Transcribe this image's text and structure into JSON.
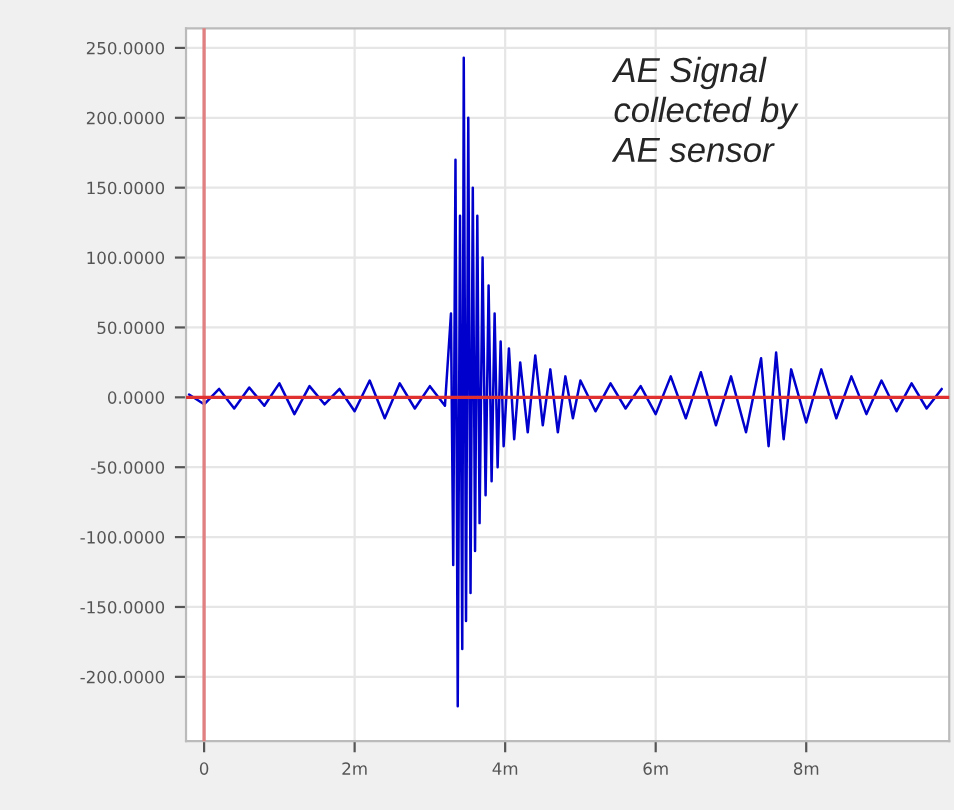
{
  "chart_data": {
    "type": "line",
    "x": [
      -0.2,
      0.0,
      0.2,
      0.4,
      0.6,
      0.8,
      1.0,
      1.2,
      1.4,
      1.6,
      1.8,
      2.0,
      2.2,
      2.4,
      2.6,
      2.8,
      3.0,
      3.2,
      3.28,
      3.31,
      3.34,
      3.37,
      3.4,
      3.43,
      3.45,
      3.48,
      3.51,
      3.54,
      3.57,
      3.6,
      3.63,
      3.66,
      3.7,
      3.74,
      3.78,
      3.82,
      3.86,
      3.9,
      3.94,
      3.98,
      4.05,
      4.12,
      4.2,
      4.3,
      4.4,
      4.5,
      4.6,
      4.7,
      4.8,
      4.9,
      5.0,
      5.2,
      5.4,
      5.6,
      5.8,
      6.0,
      6.2,
      6.4,
      6.6,
      6.8,
      7.0,
      7.2,
      7.4,
      7.5,
      7.6,
      7.7,
      7.8,
      8.0,
      8.2,
      8.4,
      8.6,
      8.8,
      9.0,
      9.2,
      9.4,
      9.6,
      9.8
    ],
    "series": [
      {
        "color": "#0000cc",
        "values": [
          2,
          -5,
          6,
          -8,
          7,
          -6,
          10,
          -12,
          8,
          -5,
          6,
          -10,
          12,
          -15,
          10,
          -8,
          8,
          -6,
          60,
          -120,
          170,
          -221,
          130,
          -180,
          243,
          -160,
          200,
          -140,
          150,
          -110,
          130,
          -90,
          100,
          -70,
          80,
          -60,
          60,
          -50,
          40,
          -35,
          35,
          -30,
          25,
          -25,
          30,
          -20,
          20,
          -25,
          15,
          -15,
          12,
          -10,
          10,
          -8,
          8,
          -12,
          15,
          -15,
          18,
          -20,
          15,
          -25,
          28,
          -35,
          32,
          -30,
          20,
          -18,
          20,
          -15,
          15,
          -12,
          12,
          -10,
          10,
          -8,
          6
        ]
      }
    ],
    "xlim": [
      -0.24,
      9.9
    ],
    "xticks": [
      {
        "value": 0,
        "label": "0"
      },
      {
        "value": 2,
        "label": "2m"
      },
      {
        "value": 4,
        "label": "4m"
      },
      {
        "value": 6,
        "label": "6m"
      },
      {
        "value": 8,
        "label": "8m"
      }
    ],
    "ylim": [
      -246,
      264
    ],
    "yticks": [
      {
        "value": -200,
        "label": "-200.0000"
      },
      {
        "value": -150,
        "label": "-150.0000"
      },
      {
        "value": -100,
        "label": "-100.0000"
      },
      {
        "value": -50,
        "label": "-50.0000"
      },
      {
        "value": 0,
        "label": "0.0000"
      },
      {
        "value": 50,
        "label": "50.0000"
      },
      {
        "value": 100,
        "label": "100.0000"
      },
      {
        "value": 150,
        "label": "150.0000"
      },
      {
        "value": 200,
        "label": "200.0000"
      },
      {
        "value": 250,
        "label": "250.0000"
      }
    ],
    "ref_lines": [
      {
        "axis": "x",
        "value": 0,
        "color": "#e08080"
      },
      {
        "axis": "y",
        "value": 0,
        "color": "#e03030"
      }
    ],
    "grid": true,
    "annotations": [
      "AE Signal\ncollected by\nAE sensor"
    ]
  }
}
